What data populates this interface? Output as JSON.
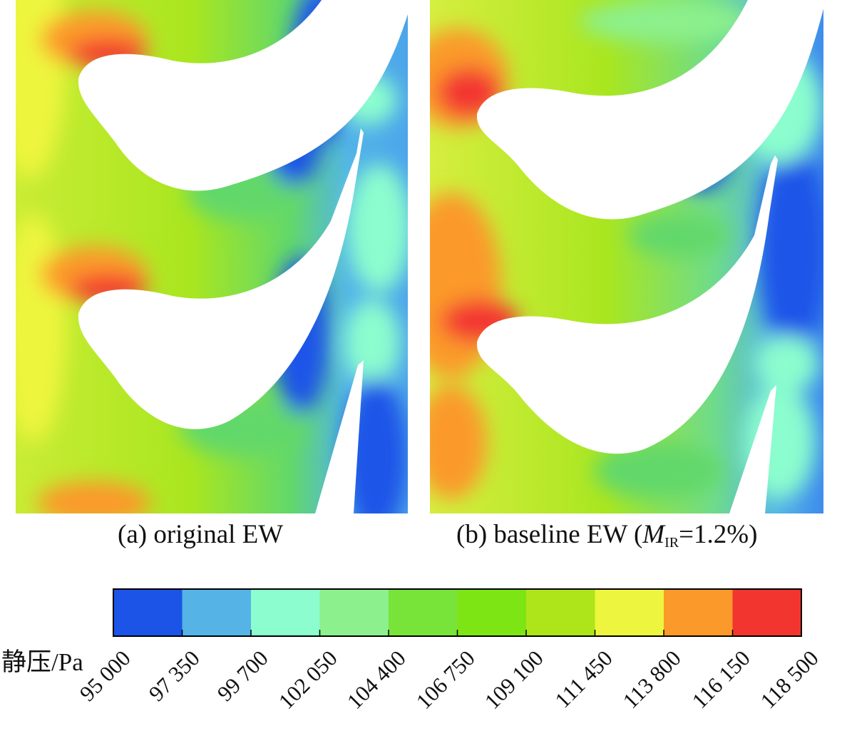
{
  "panels": [
    {
      "id": "a",
      "caption_prefix": "(a) original EW",
      "caption_math": "",
      "caption_sub": "",
      "caption_suffix": ""
    },
    {
      "id": "b",
      "caption_prefix": "(b) baseline EW (",
      "caption_math": "M",
      "caption_sub": "IR",
      "caption_suffix": "=1.2%)"
    }
  ],
  "colorbar": {
    "title": "静压/Pa",
    "tick_labels": [
      "95 000",
      "97 350",
      "99 700",
      "102 050",
      "104 400",
      "106 750",
      "109 100",
      "111 450",
      "113 800",
      "116 150",
      "118 500"
    ],
    "colors": [
      "#1c54e8",
      "#55b3e6",
      "#8bfdce",
      "#8cf08c",
      "#78e43a",
      "#7ee514",
      "#aee51a",
      "#eef53e",
      "#fb9a2a",
      "#f33530"
    ]
  }
}
